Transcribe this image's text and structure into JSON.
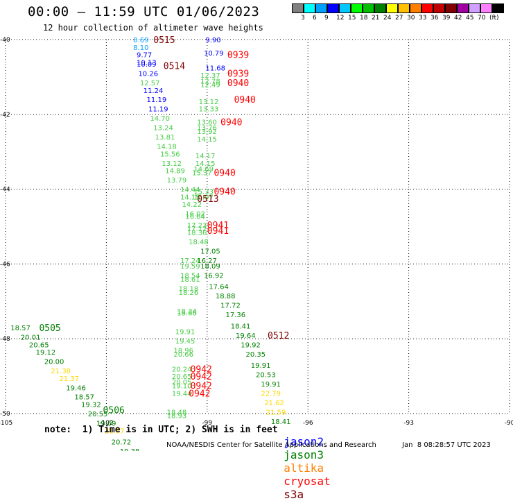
{
  "title": "00:00 – 11:59 UTC 01/06/2023",
  "subtitle": "12 hour collection of altimeter wave heights",
  "colorbar": {
    "colors": [
      "#808080",
      "#00ffff",
      "#00a0ff",
      "#0000ff",
      "#00c8ff",
      "#00ff00",
      "#00c000",
      "#008000",
      "#ffff00",
      "#ffc000",
      "#ff8000",
      "#ff0000",
      "#c00000",
      "#800000",
      "#a000a0",
      "#d0a0ff",
      "#ff80ff",
      "#000000"
    ],
    "labels": [
      "3",
      "6",
      "9",
      "12",
      "15",
      "18",
      "21",
      "24",
      "27",
      "30",
      "33",
      "36",
      "39",
      "42",
      "45",
      "70",
      "(ft)"
    ]
  },
  "satellites": {
    "jason2": {
      "label": "jason2",
      "color": "#0000ff"
    },
    "jason3": {
      "label": "jason3",
      "color": "#008000"
    },
    "altika": {
      "label": "altika",
      "color": "#ff8000"
    },
    "cryosat": {
      "label": "cryosat",
      "color": "#ff0000"
    },
    "s3a": {
      "label": "s3a",
      "color": "#800000"
    }
  },
  "footer_note": "note:  1) Time is in UTC; 2) SWH is in feet",
  "credit": "NOAA/NESDIS Center for Satellite Applications and Research",
  "stamp": "Jan  8 08:28:57 UTC 2023",
  "chart_data": {
    "type": "scatter",
    "x_ticks": [
      "-105",
      "-102",
      "-99",
      "-96",
      "-93",
      "-90"
    ],
    "y_ticks": [
      "-40",
      "-42",
      "-44",
      "-46",
      "-48",
      "-50"
    ],
    "xlim": [
      -105,
      -90
    ],
    "ylim": [
      -50,
      -40
    ],
    "grid": true,
    "points": [
      {
        "lon": -101.2,
        "lat": -40.0,
        "text": "8.69",
        "color": "#00a0ff"
      },
      {
        "lon": -101.2,
        "lat": -40.2,
        "text": "8.10",
        "color": "#00a0ff"
      },
      {
        "lon": -101.1,
        "lat": -40.4,
        "text": "9.77",
        "color": "#0000ff"
      },
      {
        "lon": -101.1,
        "lat": -40.6,
        "text": "10.13",
        "color": "#0000ff"
      },
      {
        "lon": -101.1,
        "lat": -40.65,
        "text": "10.09",
        "color": "#0000ff"
      },
      {
        "lon": -101.05,
        "lat": -40.9,
        "text": "10.26",
        "color": "#0000ff"
      },
      {
        "lon": -101.0,
        "lat": -41.15,
        "text": "12.57",
        "color": "#44cc44"
      },
      {
        "lon": -100.9,
        "lat": -41.35,
        "text": "11.24",
        "color": "#0000ff"
      },
      {
        "lon": -100.8,
        "lat": -41.6,
        "text": "11.19",
        "color": "#0000ff"
      },
      {
        "lon": -100.75,
        "lat": -41.85,
        "text": "11.19",
        "color": "#0000ff"
      },
      {
        "lon": -100.7,
        "lat": -42.1,
        "text": "14.70",
        "color": "#44cc44"
      },
      {
        "lon": -100.6,
        "lat": -42.35,
        "text": "13.24",
        "color": "#44cc44"
      },
      {
        "lon": -100.55,
        "lat": -42.6,
        "text": "13.81",
        "color": "#44cc44"
      },
      {
        "lon": -100.5,
        "lat": -42.85,
        "text": "14.18",
        "color": "#44cc44"
      },
      {
        "lon": -100.4,
        "lat": -43.05,
        "text": "15.56",
        "color": "#44cc44"
      },
      {
        "lon": -100.35,
        "lat": -43.3,
        "text": "13.12",
        "color": "#44cc44"
      },
      {
        "lon": -100.25,
        "lat": -43.5,
        "text": "14.89",
        "color": "#44cc44"
      },
      {
        "lon": -100.2,
        "lat": -43.75,
        "text": "13.79",
        "color": "#44cc44"
      },
      {
        "lon": -99.8,
        "lat": -44.0,
        "text": "14.44",
        "color": "#44cc44"
      },
      {
        "lon": -99.8,
        "lat": -44.2,
        "text": "14.15",
        "color": "#44cc44"
      },
      {
        "lon": -99.75,
        "lat": -44.4,
        "text": "14.22",
        "color": "#44cc44"
      },
      {
        "lon": -99.65,
        "lat": -44.65,
        "text": "16.02",
        "color": "#44cc44"
      },
      {
        "lon": -99.65,
        "lat": -44.72,
        "text": "16.64",
        "color": "#44cc44"
      },
      {
        "lon": -99.6,
        "lat": -44.95,
        "text": "17.23",
        "color": "#44cc44"
      },
      {
        "lon": -99.6,
        "lat": -45.05,
        "text": "17.12",
        "color": "#44cc44"
      },
      {
        "lon": -99.6,
        "lat": -45.15,
        "text": "18.36",
        "color": "#44cc44"
      },
      {
        "lon": -99.55,
        "lat": -45.4,
        "text": "18.48",
        "color": "#44cc44"
      },
      {
        "lon": -99.8,
        "lat": -45.9,
        "text": "17.24",
        "color": "#44cc44"
      },
      {
        "lon": -99.8,
        "lat": -46.05,
        "text": "19.59",
        "color": "#44cc44"
      },
      {
        "lon": -99.8,
        "lat": -46.3,
        "text": "18.54",
        "color": "#44cc44"
      },
      {
        "lon": -99.8,
        "lat": -46.4,
        "text": "18.61",
        "color": "#44cc44"
      },
      {
        "lon": -99.85,
        "lat": -46.65,
        "text": "18.18",
        "color": "#44cc44"
      },
      {
        "lon": -99.85,
        "lat": -46.75,
        "text": "18.26",
        "color": "#44cc44"
      },
      {
        "lon": -99.9,
        "lat": -47.25,
        "text": "18.34",
        "color": "#44cc44"
      },
      {
        "lon": -99.9,
        "lat": -47.3,
        "text": "18.66",
        "color": "#44cc44"
      },
      {
        "lon": -99.95,
        "lat": -47.8,
        "text": "19.91",
        "color": "#44cc44"
      },
      {
        "lon": -99.95,
        "lat": -48.05,
        "text": "19.45",
        "color": "#44cc44"
      },
      {
        "lon": -100.0,
        "lat": -48.3,
        "text": "18.96",
        "color": "#44cc44"
      },
      {
        "lon": -100.0,
        "lat": -48.4,
        "text": "20.66",
        "color": "#44cc44"
      },
      {
        "lon": -100.05,
        "lat": -48.8,
        "text": "20.24",
        "color": "#44cc44"
      },
      {
        "lon": -100.05,
        "lat": -49.0,
        "text": "20.65",
        "color": "#44cc44"
      },
      {
        "lon": -100.05,
        "lat": -49.15,
        "text": "20.05",
        "color": "#44cc44"
      },
      {
        "lon": -100.05,
        "lat": -49.25,
        "text": "19.10",
        "color": "#44cc44"
      },
      {
        "lon": -100.05,
        "lat": -49.45,
        "text": "19.44",
        "color": "#44cc44"
      },
      {
        "lon": -100.2,
        "lat": -49.95,
        "text": "18.48",
        "color": "#44cc44"
      },
      {
        "lon": -100.2,
        "lat": -50.05,
        "text": "18.93",
        "color": "#44cc44"
      },
      {
        "lon": -99.05,
        "lat": -40.0,
        "text": "9.90",
        "color": "#0000ff"
      },
      {
        "lon": -99.1,
        "lat": -40.35,
        "text": "10.79",
        "color": "#0000ff"
      },
      {
        "lon": -99.05,
        "lat": -40.75,
        "text": "11.68",
        "color": "#0000ff"
      },
      {
        "lon": -99.2,
        "lat": -40.95,
        "text": "12.37",
        "color": "#44cc44"
      },
      {
        "lon": -99.2,
        "lat": -41.1,
        "text": "12.78",
        "color": "#44cc44"
      },
      {
        "lon": -99.2,
        "lat": -41.2,
        "text": "12.49",
        "color": "#44cc44"
      },
      {
        "lon": -99.25,
        "lat": -41.65,
        "text": "13.12",
        "color": "#44cc44"
      },
      {
        "lon": -99.25,
        "lat": -41.85,
        "text": "13.33",
        "color": "#44cc44"
      },
      {
        "lon": -99.3,
        "lat": -42.2,
        "text": "13.60",
        "color": "#44cc44"
      },
      {
        "lon": -99.3,
        "lat": -42.35,
        "text": "13.76",
        "color": "#44cc44"
      },
      {
        "lon": -99.3,
        "lat": -42.45,
        "text": "13.92",
        "color": "#44cc44"
      },
      {
        "lon": -99.3,
        "lat": -42.65,
        "text": "14.15",
        "color": "#44cc44"
      },
      {
        "lon": -99.35,
        "lat": -43.1,
        "text": "14.17",
        "color": "#44cc44"
      },
      {
        "lon": -99.35,
        "lat": -43.3,
        "text": "14.15",
        "color": "#44cc44"
      },
      {
        "lon": -99.4,
        "lat": -43.45,
        "text": "14.69",
        "color": "#44cc44"
      },
      {
        "lon": -99.45,
        "lat": -43.55,
        "text": "15.37",
        "color": "#44cc44"
      },
      {
        "lon": -99.4,
        "lat": -44.05,
        "text": "15.33",
        "color": "#44cc44"
      },
      {
        "lon": -99.4,
        "lat": -44.2,
        "text": "15.97",
        "color": "#44cc44"
      },
      {
        "lon": -99.2,
        "lat": -45.65,
        "text": "17.05",
        "color": "#008000"
      },
      {
        "lon": -99.3,
        "lat": -45.9,
        "text": "16.27",
        "color": "#008000"
      },
      {
        "lon": -99.2,
        "lat": -46.05,
        "text": "18.09",
        "color": "#008000"
      },
      {
        "lon": -99.1,
        "lat": -46.3,
        "text": "16.92",
        "color": "#008000"
      },
      {
        "lon": -98.95,
        "lat": -46.6,
        "text": "17.64",
        "color": "#008000"
      },
      {
        "lon": -98.75,
        "lat": -46.85,
        "text": "18.88",
        "color": "#008000"
      },
      {
        "lon": -98.6,
        "lat": -47.1,
        "text": "17.72",
        "color": "#008000"
      },
      {
        "lon": -98.45,
        "lat": -47.35,
        "text": "17.36",
        "color": "#008000"
      },
      {
        "lon": -98.3,
        "lat": -47.65,
        "text": "18.41",
        "color": "#008000"
      },
      {
        "lon": -98.15,
        "lat": -47.9,
        "text": "19.64",
        "color": "#008000"
      },
      {
        "lon": -98.0,
        "lat": -48.15,
        "text": "19.92",
        "color": "#008000"
      },
      {
        "lon": -97.85,
        "lat": -48.4,
        "text": "20.35",
        "color": "#008000"
      },
      {
        "lon": -97.7,
        "lat": -48.7,
        "text": "19.91",
        "color": "#008000"
      },
      {
        "lon": -97.55,
        "lat": -48.95,
        "text": "20.53",
        "color": "#008000"
      },
      {
        "lon": -97.4,
        "lat": -49.2,
        "text": "19.91",
        "color": "#008000"
      },
      {
        "lon": -97.4,
        "lat": -49.45,
        "text": "22.79",
        "color": "#ffd700"
      },
      {
        "lon": -97.3,
        "lat": -49.7,
        "text": "21.62",
        "color": "#ffd700"
      },
      {
        "lon": -97.25,
        "lat": -49.95,
        "text": "21.59",
        "color": "#ffd700"
      },
      {
        "lon": -97.1,
        "lat": -50.2,
        "text": "18.41",
        "color": "#008000"
      },
      {
        "lon": -104.85,
        "lat": -47.7,
        "text": "18.57",
        "color": "#008000"
      },
      {
        "lon": -104.55,
        "lat": -47.95,
        "text": "20.01",
        "color": "#008000"
      },
      {
        "lon": -104.3,
        "lat": -48.15,
        "text": "20.65",
        "color": "#008000"
      },
      {
        "lon": -104.1,
        "lat": -48.35,
        "text": "19.12",
        "color": "#008000"
      },
      {
        "lon": -103.85,
        "lat": -48.6,
        "text": "20.00",
        "color": "#008000"
      },
      {
        "lon": -103.65,
        "lat": -48.85,
        "text": "21.38",
        "color": "#ffd700"
      },
      {
        "lon": -103.4,
        "lat": -49.05,
        "text": "21.37",
        "color": "#ffd700"
      },
      {
        "lon": -103.2,
        "lat": -49.3,
        "text": "19.46",
        "color": "#008000"
      },
      {
        "lon": -102.95,
        "lat": -49.55,
        "text": "18.57",
        "color": "#008000"
      },
      {
        "lon": -102.75,
        "lat": -49.75,
        "text": "19.32",
        "color": "#008000"
      },
      {
        "lon": -102.55,
        "lat": -50.0,
        "text": "20.55",
        "color": "#008000"
      },
      {
        "lon": -102.3,
        "lat": -50.25,
        "text": "19.69",
        "color": "#008000"
      },
      {
        "lon": -102.05,
        "lat": -50.45,
        "text": "21.57",
        "color": "#ffd700"
      },
      {
        "lon": -101.85,
        "lat": -50.75,
        "text": "20.72",
        "color": "#008000"
      },
      {
        "lon": -101.6,
        "lat": -51.0,
        "text": "19.38",
        "color": "#008000"
      }
    ],
    "time_labels": [
      {
        "lon": -100.6,
        "lat": -40.0,
        "text": "0515",
        "color": "#800000"
      },
      {
        "lon": -98.4,
        "lat": -40.4,
        "text": "0939",
        "color": "#ff0000"
      },
      {
        "lon": -100.3,
        "lat": -40.7,
        "text": "0514",
        "color": "#800000"
      },
      {
        "lon": -98.4,
        "lat": -40.9,
        "text": "0939",
        "color": "#ff0000"
      },
      {
        "lon": -98.4,
        "lat": -41.15,
        "text": "0940",
        "color": "#ff0000"
      },
      {
        "lon": -98.2,
        "lat": -41.6,
        "text": "0940",
        "color": "#ff0000"
      },
      {
        "lon": -98.6,
        "lat": -42.2,
        "text": "0940",
        "color": "#ff0000"
      },
      {
        "lon": -98.8,
        "lat": -43.55,
        "text": "0940",
        "color": "#ff0000"
      },
      {
        "lon": -98.8,
        "lat": -44.05,
        "text": "0940",
        "color": "#ff0000"
      },
      {
        "lon": -99.3,
        "lat": -44.25,
        "text": "0513",
        "color": "#800000"
      },
      {
        "lon": -99.0,
        "lat": -44.95,
        "text": "0941",
        "color": "#ff0000"
      },
      {
        "lon": -99.0,
        "lat": -45.1,
        "text": "0941",
        "color": "#ff0000"
      },
      {
        "lon": -97.2,
        "lat": -47.9,
        "text": "0512",
        "color": "#800000"
      },
      {
        "lon": -104.0,
        "lat": -47.7,
        "text": "0505",
        "color": "#008000"
      },
      {
        "lon": -99.5,
        "lat": -48.8,
        "text": "0942",
        "color": "#ff0000"
      },
      {
        "lon": -99.5,
        "lat": -49.0,
        "text": "0942",
        "color": "#ff0000"
      },
      {
        "lon": -99.5,
        "lat": -49.25,
        "text": "0942",
        "color": "#ff0000"
      },
      {
        "lon": -99.55,
        "lat": -49.45,
        "text": "0942",
        "color": "#ff0000"
      },
      {
        "lon": -102.1,
        "lat": -49.9,
        "text": "0506",
        "color": "#008000"
      }
    ]
  }
}
